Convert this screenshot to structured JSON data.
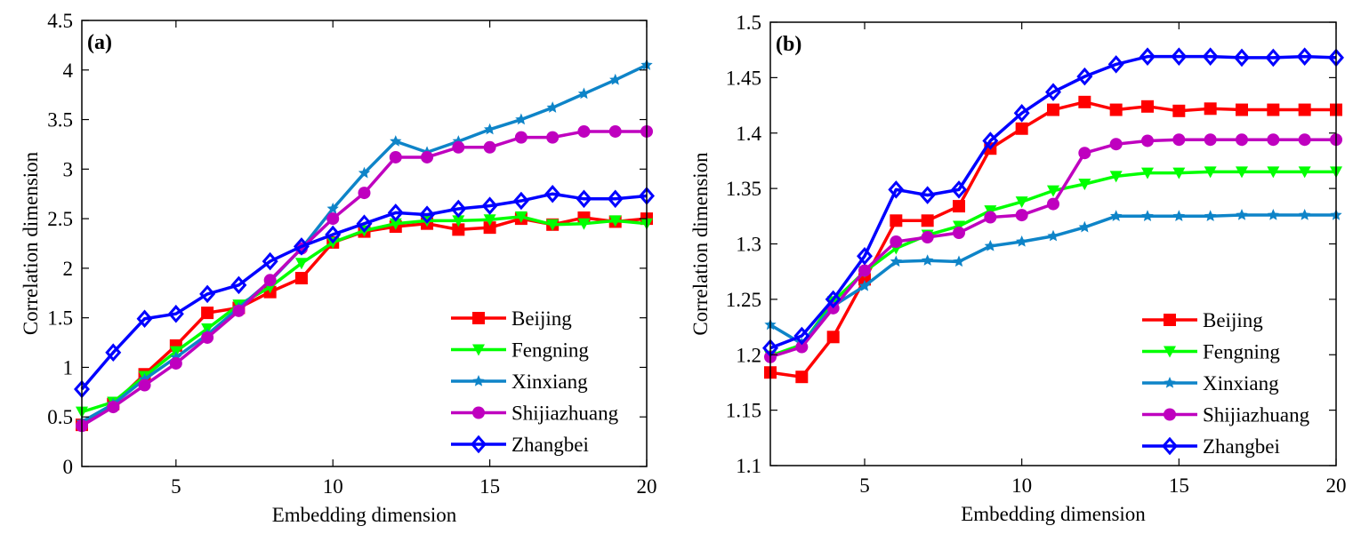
{
  "chart_data": [
    {
      "type": "line",
      "panel_label": "(a)",
      "title": "",
      "xlabel": "Embedding dimension",
      "ylabel": "Correlation dimension",
      "xlim": [
        2,
        20
      ],
      "ylim": [
        0,
        4.5
      ],
      "xticks": [
        5,
        10,
        15,
        20
      ],
      "xtick_labels": [
        "5",
        "10",
        "15",
        "20"
      ],
      "yticks": [
        0,
        0.5,
        1,
        1.5,
        2,
        2.5,
        3,
        3.5,
        4,
        4.5
      ],
      "ytick_labels": [
        "0",
        "0.5",
        "1",
        "1.5",
        "2",
        "2.5",
        "3",
        "3.5",
        "4",
        "4.5"
      ],
      "grid": false,
      "legend_position": "bottom-right",
      "x": [
        2,
        3,
        4,
        5,
        6,
        7,
        8,
        9,
        10,
        11,
        12,
        13,
        14,
        15,
        16,
        17,
        18,
        19,
        20
      ],
      "series": [
        {
          "name": "Beijing",
          "color": "#ff0000",
          "marker": "square",
          "values": [
            0.42,
            0.63,
            0.93,
            1.22,
            1.55,
            1.6,
            1.76,
            1.9,
            2.26,
            2.37,
            2.42,
            2.45,
            2.39,
            2.41,
            2.5,
            2.44,
            2.51,
            2.47,
            2.5
          ]
        },
        {
          "name": "Fengning",
          "color": "#00ff00",
          "marker": "triangle-down",
          "values": [
            0.55,
            0.65,
            0.91,
            1.16,
            1.39,
            1.63,
            1.81,
            2.05,
            2.26,
            2.38,
            2.45,
            2.48,
            2.48,
            2.49,
            2.52,
            2.44,
            2.45,
            2.48,
            2.45
          ]
        },
        {
          "name": "Xinxiang",
          "color": "#0e84c8",
          "marker": "star",
          "values": [
            0.45,
            0.63,
            0.88,
            1.1,
            1.33,
            1.6,
            1.87,
            2.2,
            2.6,
            2.96,
            3.28,
            3.17,
            3.28,
            3.4,
            3.5,
            3.62,
            3.76,
            3.9,
            4.05
          ]
        },
        {
          "name": "Shijiazhuang",
          "color": "#bf00bf",
          "marker": "circle",
          "values": [
            0.41,
            0.6,
            0.82,
            1.04,
            1.3,
            1.57,
            1.88,
            2.2,
            2.5,
            2.76,
            3.12,
            3.12,
            3.22,
            3.22,
            3.32,
            3.32,
            3.38,
            3.38,
            3.38
          ]
        },
        {
          "name": "Zhangbei",
          "color": "#0000ff",
          "marker": "diamond",
          "values": [
            0.78,
            1.15,
            1.49,
            1.54,
            1.74,
            1.83,
            2.07,
            2.22,
            2.34,
            2.45,
            2.56,
            2.54,
            2.6,
            2.63,
            2.68,
            2.75,
            2.7,
            2.7,
            2.73
          ]
        }
      ]
    },
    {
      "type": "line",
      "panel_label": "(b)",
      "title": "",
      "xlabel": "Embedding dimension",
      "ylabel": "Correlation dimension",
      "xlim": [
        2,
        20
      ],
      "ylim": [
        1.1,
        1.5
      ],
      "xticks": [
        5,
        10,
        15,
        20
      ],
      "xtick_labels": [
        "5",
        "10",
        "15",
        "20"
      ],
      "yticks": [
        1.1,
        1.15,
        1.2,
        1.25,
        1.3,
        1.35,
        1.4,
        1.45,
        1.5
      ],
      "ytick_labels": [
        "1.1",
        "1.15",
        "1.2",
        "1.25",
        "1.3",
        "1.35",
        "1.4",
        "1.45",
        "1.5"
      ],
      "grid": false,
      "legend_position": "bottom-right",
      "x": [
        2,
        3,
        4,
        5,
        6,
        7,
        8,
        9,
        10,
        11,
        12,
        13,
        14,
        15,
        16,
        17,
        18,
        19,
        20
      ],
      "series": [
        {
          "name": "Beijing",
          "color": "#ff0000",
          "marker": "square",
          "values": [
            1.184,
            1.18,
            1.216,
            1.268,
            1.321,
            1.321,
            1.334,
            1.386,
            1.404,
            1.421,
            1.428,
            1.421,
            1.424,
            1.42,
            1.422,
            1.421,
            1.421,
            1.421,
            1.421
          ]
        },
        {
          "name": "Fengning",
          "color": "#00ff00",
          "marker": "triangle-down",
          "values": [
            1.199,
            1.209,
            1.248,
            1.275,
            1.296,
            1.308,
            1.316,
            1.33,
            1.338,
            1.348,
            1.354,
            1.361,
            1.364,
            1.364,
            1.365,
            1.365,
            1.365,
            1.365,
            1.365
          ]
        },
        {
          "name": "Xinxiang",
          "color": "#0e84c8",
          "marker": "star",
          "values": [
            1.227,
            1.21,
            1.244,
            1.262,
            1.284,
            1.285,
            1.284,
            1.298,
            1.302,
            1.307,
            1.315,
            1.325,
            1.325,
            1.325,
            1.325,
            1.326,
            1.326,
            1.326,
            1.326
          ]
        },
        {
          "name": "Shijiazhuang",
          "color": "#bf00bf",
          "marker": "circle",
          "values": [
            1.198,
            1.207,
            1.242,
            1.276,
            1.302,
            1.306,
            1.31,
            1.324,
            1.326,
            1.336,
            1.382,
            1.39,
            1.393,
            1.394,
            1.394,
            1.394,
            1.394,
            1.394,
            1.394
          ]
        },
        {
          "name": "Zhangbei",
          "color": "#0000ff",
          "marker": "diamond",
          "values": [
            1.206,
            1.217,
            1.25,
            1.289,
            1.349,
            1.344,
            1.349,
            1.393,
            1.418,
            1.437,
            1.451,
            1.462,
            1.469,
            1.469,
            1.469,
            1.468,
            1.468,
            1.469,
            1.468
          ]
        }
      ]
    }
  ]
}
